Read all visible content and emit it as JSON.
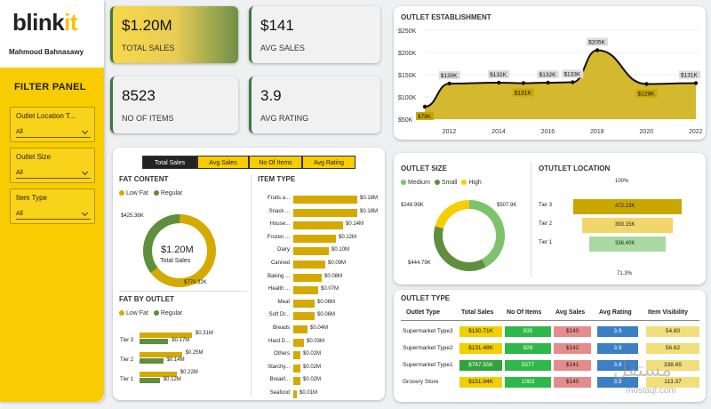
{
  "brand": {
    "name_a": "blink",
    "name_b": "it",
    "user": "Mahmoud Bahnasawy"
  },
  "filter_panel": {
    "title": "FILTER PANEL",
    "filters": [
      {
        "label": "Outlet Location T...",
        "value": "All"
      },
      {
        "label": "Outlet Size",
        "value": "All"
      },
      {
        "label": "Item Type",
        "value": "All"
      }
    ]
  },
  "kpis": [
    {
      "value": "$1.20M",
      "label": "TOTAL SALES"
    },
    {
      "value": "$141",
      "label": "AVG SALES"
    },
    {
      "value": "8523",
      "label": "NO OF ITEMS"
    },
    {
      "value": "3.9",
      "label": "AVG RATING"
    }
  ],
  "tabs": [
    "Total Sales",
    "Avg Sales",
    "No Of Items",
    "Avg Rating"
  ],
  "colors": {
    "yellow": "#d4a900",
    "green": "#5f8f3d",
    "light_green": "#7cc36b",
    "accent": "#f7cc00"
  },
  "outlet_establishment": {
    "title": "OUTLET ESTABLISHMENT",
    "yticks": [
      "$250K",
      "$200K",
      "$150K",
      "$100K",
      "$50K"
    ],
    "chart_data": {
      "type": "area",
      "x": [
        2011,
        2012,
        2014,
        2015,
        2016,
        2017,
        2018,
        2020,
        2022
      ],
      "values": [
        78,
        130,
        132,
        131,
        132,
        133,
        205,
        129,
        131
      ],
      "labels": [
        "$78K",
        "$130K",
        "$132K",
        "$131K",
        "$132K",
        "$133K",
        "$205K",
        "$129K",
        "$131K"
      ],
      "xticks": [
        "2012",
        "2014",
        "2016",
        "2018",
        "2020",
        "2022"
      ],
      "ylim": [
        50,
        250
      ],
      "unit": "$K"
    }
  },
  "fat_content": {
    "title": "FAT CONTENT",
    "legend": [
      "Low Fat",
      "Regular"
    ],
    "center_value": "$1.20M",
    "center_label": "Total Sales",
    "chart_data": {
      "type": "pie",
      "categories": [
        "Low Fat",
        "Regular"
      ],
      "values": [
        776.32,
        425.36
      ],
      "labels": [
        "$776.32K",
        "$425.36K"
      ]
    }
  },
  "fat_by_outlet": {
    "title": "FAT BY OUTLET",
    "legend": [
      "Low Fat",
      "Regular"
    ],
    "chart_data": {
      "type": "bar",
      "categories": [
        "Tier 3",
        "Tier 2",
        "Tier 1"
      ],
      "series": [
        {
          "name": "Low Fat",
          "values": [
            0.31,
            0.25,
            0.22
          ],
          "labels": [
            "$0.31M",
            "$0.25M",
            "$0.22M"
          ]
        },
        {
          "name": "Regular",
          "values": [
            0.17,
            0.14,
            0.12
          ],
          "labels": [
            "$0.17M",
            "$0.14M",
            "$0.12M"
          ]
        }
      ]
    }
  },
  "item_type": {
    "title": "ITEM TYPE",
    "chart_data": {
      "type": "bar",
      "categories": [
        "Fruits a...",
        "Snack ...",
        "House...",
        "Frozen ...",
        "Dairy",
        "Canned",
        "Baking ...",
        "Health ...",
        "Meat",
        "Soft Dr...",
        "Breads",
        "Hard D...",
        "Others",
        "Starchy...",
        "Breakf...",
        "Seafood"
      ],
      "values": [
        0.18,
        0.18,
        0.14,
        0.12,
        0.1,
        0.09,
        0.08,
        0.07,
        0.06,
        0.06,
        0.04,
        0.03,
        0.02,
        0.02,
        0.02,
        0.01
      ],
      "labels": [
        "$0.18M",
        "$0.18M",
        "$0.14M",
        "$0.12M",
        "$0.10M",
        "$0.09M",
        "$0.08M",
        "$0.07M",
        "$0.06M",
        "$0.06M",
        "$0.04M",
        "$0.03M",
        "$0.02M",
        "$0.02M",
        "$0.02M",
        "$0.01M"
      ]
    }
  },
  "outlet_size": {
    "title": "OUTLET SIZE",
    "legend": [
      "Medium",
      "Small",
      "High"
    ],
    "chart_data": {
      "type": "pie",
      "categories": [
        "Medium",
        "Small",
        "High"
      ],
      "values": [
        507.9,
        444.79,
        248.99
      ],
      "labels": [
        "$507.9K",
        "$444.79K",
        "$248.99K"
      ]
    }
  },
  "outlet_location": {
    "title": "OTUTLET LOCATION",
    "top_pct": "100%",
    "bottom_pct": "71.3%",
    "chart_data": {
      "type": "bar",
      "categories": [
        "Tier 3",
        "Tier 2",
        "Tier 1"
      ],
      "values": [
        472.13,
        393.15,
        336.4
      ],
      "labels": [
        "472.13K",
        "393.15K",
        "336.40K"
      ]
    }
  },
  "outlet_type": {
    "title": "OUTLET TYPE",
    "headers": [
      "Outlet Type",
      "Total Sales",
      "No Of Items",
      "Avg Sales",
      "Avg Rating",
      "Item Visibility"
    ],
    "rows": [
      {
        "type": "Supermarket Type3",
        "sales": "$130.71K",
        "items": "935",
        "avg": "$140",
        "rating": "3.9",
        "vis": "54.80"
      },
      {
        "type": "Supermarket Type2",
        "sales": "$131.48K",
        "items": "928",
        "avg": "$142",
        "rating": "3.9",
        "vis": "56.62"
      },
      {
        "type": "Supermarket Type1",
        "sales": "$787.55K",
        "items": "5577",
        "avg": "$141",
        "rating": "3.9",
        "vis": "338.65"
      },
      {
        "type": "Grocery Store",
        "sales": "$151.94K",
        "items": "1083",
        "avg": "$140",
        "rating": "3.9",
        "vis": "113.37"
      }
    ]
  },
  "watermark": {
    "top": "مستقل",
    "bottom": "mostaql.com"
  }
}
